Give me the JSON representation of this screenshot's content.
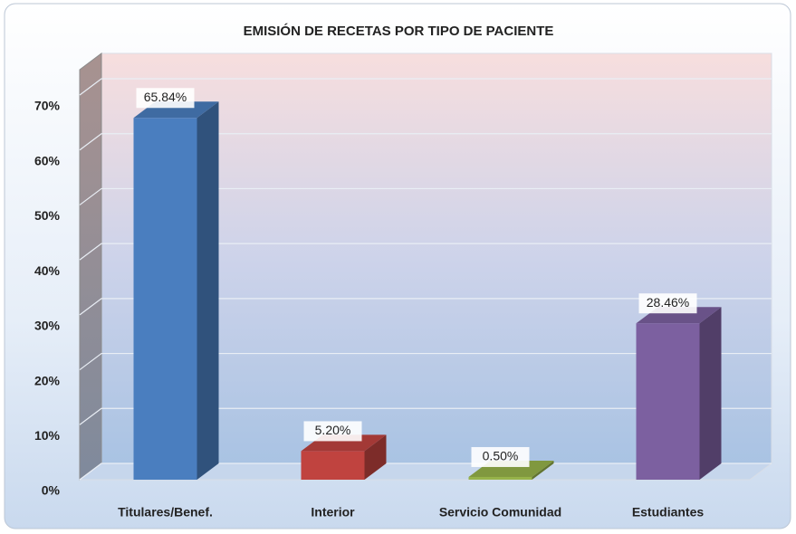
{
  "chart_data": {
    "type": "bar3d",
    "title": "EMISIÓN DE RECETAS POR TIPO DE PACIENTE",
    "categories": [
      "Titulares/Benef.",
      "Interior",
      "Servicio Comunidad",
      "Estudiantes"
    ],
    "values": [
      65.84,
      5.2,
      0.5,
      28.46
    ],
    "value_labels": [
      "65.84%",
      "5.20%",
      "0.50%",
      "28.46%"
    ],
    "colors": [
      "#4a7ebf",
      "#c0433f",
      "#96b34a",
      "#7c60a0"
    ],
    "ylim": [
      0,
      70
    ],
    "yticks": [
      {
        "value": 0,
        "label": "0%"
      },
      {
        "value": 10,
        "label": "10%"
      },
      {
        "value": 20,
        "label": "20%"
      },
      {
        "value": 30,
        "label": "30%"
      },
      {
        "value": 40,
        "label": "40%"
      },
      {
        "value": 50,
        "label": "50%"
      },
      {
        "value": 60,
        "label": "60%"
      },
      {
        "value": 70,
        "label": "70%"
      }
    ],
    "grid": true
  }
}
